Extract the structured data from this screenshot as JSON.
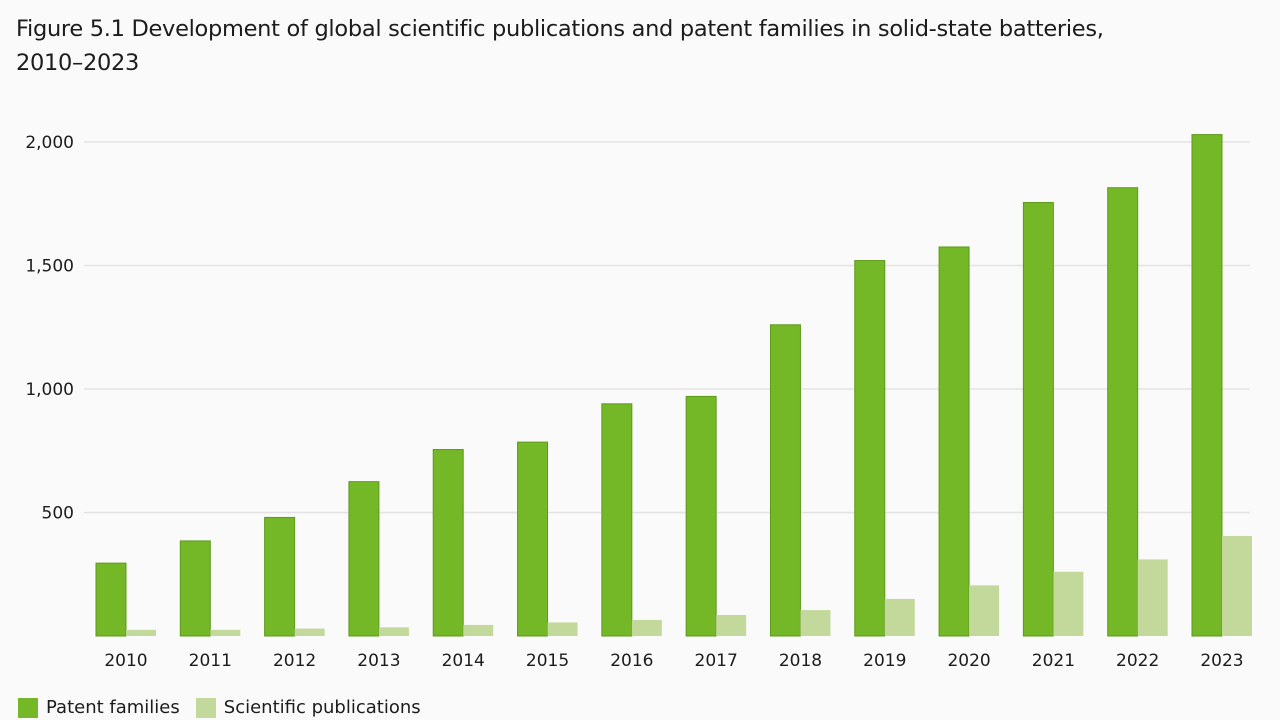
{
  "title_line1": "Figure 5.1 Development of global scientific publications and patent families in solid-state batteries,",
  "title_line2": "2010–2023",
  "colors": {
    "patent_families": "#74b727",
    "patent_families_edge": "#5e9a1c",
    "scientific_publications": "#c3d99b",
    "gridline": "#e3e3e3",
    "background": "#fafafa"
  },
  "chart_data": {
    "type": "bar",
    "title": "Figure 5.1 Development of global scientific publications and patent families in solid-state batteries, 2010–2023",
    "xlabel": "",
    "ylabel": "",
    "categories": [
      "2010",
      "2011",
      "2012",
      "2013",
      "2014",
      "2015",
      "2016",
      "2017",
      "2018",
      "2019",
      "2020",
      "2021",
      "2022",
      "2023"
    ],
    "series": [
      {
        "name": "Patent families",
        "values": [
          295,
          385,
          480,
          625,
          755,
          785,
          940,
          970,
          1260,
          1520,
          1575,
          1755,
          1815,
          2030
        ]
      },
      {
        "name": "Scientific publications",
        "values": [
          25,
          25,
          30,
          35,
          45,
          55,
          65,
          85,
          105,
          150,
          205,
          260,
          310,
          405
        ]
      }
    ],
    "ylim": [
      0,
      2000
    ],
    "yticks": [
      500,
      1000,
      1500,
      2000
    ],
    "ytick_labels": [
      "500",
      "1,000",
      "1,500",
      "2,000"
    ],
    "grid": true,
    "legend": {
      "position": "bottom-left",
      "entries": [
        "Patent families",
        "Scientific publications"
      ]
    }
  }
}
